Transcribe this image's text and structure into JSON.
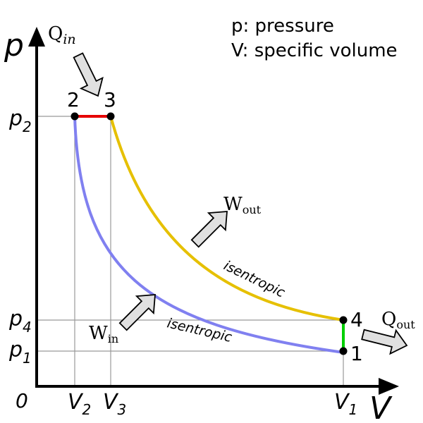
{
  "diagram": {
    "axes": {
      "y_axis_label": "p",
      "x_axis_label": "V",
      "origin_label": "0"
    },
    "legend": {
      "line1": "p: pressure",
      "line2": "V: specific volume"
    },
    "points": {
      "p1": "1",
      "p2": "2",
      "p3": "3",
      "p4": "4"
    },
    "y_ticks": [
      {
        "base": "p",
        "sub": "2"
      },
      {
        "base": "p",
        "sub": "4"
      },
      {
        "base": "p",
        "sub": "1"
      }
    ],
    "x_ticks": [
      {
        "base": "V",
        "sub": "2"
      },
      {
        "base": "V",
        "sub": "3"
      },
      {
        "base": "V",
        "sub": "1"
      }
    ],
    "heat_flows": {
      "q_in": {
        "base": "Q",
        "sub": "in"
      },
      "q_out": {
        "base": "Q",
        "sub": "out"
      }
    },
    "work": {
      "w_out": {
        "base": "W",
        "sub": "out"
      },
      "w_in": {
        "base": "W",
        "sub": "in"
      }
    },
    "curve_labels": {
      "upper": "isentropic",
      "lower": "isentropic"
    },
    "colors": {
      "constant_pressure": "#e60000",
      "expansion": "#e6c000",
      "compression": "#8080f0",
      "constant_volume": "#00d000",
      "grid": "#999999",
      "arrow_fill": "#e0e0e0"
    }
  }
}
